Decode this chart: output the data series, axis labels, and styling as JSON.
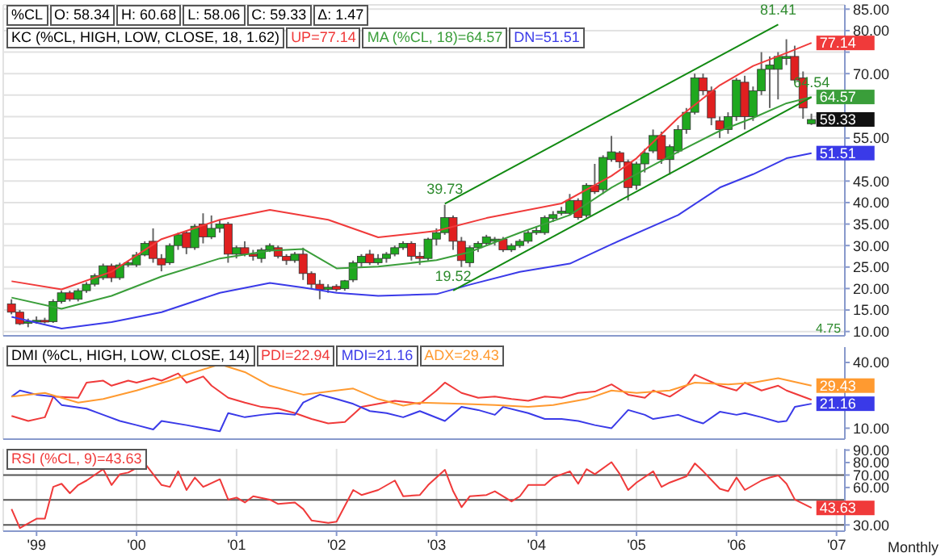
{
  "chart_data": [
    {
      "type": "candlestick",
      "title": "%CL",
      "annotations": [
        "O: 58.34",
        "H: 60.68",
        "L: 58.06",
        "C: 59.33",
        "Δ: 1.47",
        {
          "text": "39.73",
          "x": "2003-02",
          "y": 39.73
        },
        {
          "text": "81.41",
          "x": "2006-06",
          "y": 81.41
        },
        {
          "text": "19.52",
          "x": "2003-03",
          "y": 19.52
        },
        {
          "text": "64.54",
          "x": "2006-10",
          "y": 64.54
        }
      ],
      "subtitle": "4.75",
      "legend_title": "KC (%CL, HIGH, LOW, CLOSE, 18, 1.62)",
      "legend": "top left",
      "grid": true,
      "tick_labels": "y",
      "xticks": [
        {
          "value": "1999-01",
          "label": null
        },
        {
          "value": "2000-01",
          "label": null
        },
        {
          "value": "2001-01",
          "label": null
        },
        {
          "value": "2002-01",
          "label": null
        },
        {
          "value": "2003-01",
          "label": null
        },
        {
          "value": "2004-01",
          "label": null
        },
        {
          "value": "2005-01",
          "label": null
        },
        {
          "value": "2006-01",
          "label": null
        },
        {
          "value": "2007-01",
          "label": null
        }
      ],
      "x": [
        "1998-10",
        "1998-11",
        "1998-12",
        "1999-01",
        "1999-02",
        "1999-03",
        "1999-04",
        "1999-05",
        "1999-06",
        "1999-07",
        "1999-08",
        "1999-09",
        "1999-10",
        "1999-11",
        "1999-12",
        "2000-01",
        "2000-02",
        "2000-03",
        "2000-04",
        "2000-05",
        "2000-06",
        "2000-07",
        "2000-08",
        "2000-09",
        "2000-10",
        "2000-11",
        "2000-12",
        "2001-01",
        "2001-02",
        "2001-03",
        "2001-04",
        "2001-05",
        "2001-06",
        "2001-07",
        "2001-08",
        "2001-09",
        "2001-10",
        "2001-11",
        "2001-12",
        "2002-01",
        "2002-02",
        "2002-03",
        "2002-04",
        "2002-05",
        "2002-06",
        "2002-07",
        "2002-08",
        "2002-09",
        "2002-10",
        "2002-11",
        "2002-12",
        "2003-01",
        "2003-02",
        "2003-03",
        "2003-04",
        "2003-05",
        "2003-06",
        "2003-07",
        "2003-08",
        "2003-09",
        "2003-10",
        "2003-11",
        "2003-12",
        "2004-01",
        "2004-02",
        "2004-03",
        "2004-04",
        "2004-05",
        "2004-06",
        "2004-07",
        "2004-08",
        "2004-09",
        "2004-10",
        "2004-11",
        "2004-12",
        "2005-01",
        "2005-02",
        "2005-03",
        "2005-04",
        "2005-05",
        "2005-06",
        "2005-07",
        "2005-08",
        "2005-09",
        "2005-10",
        "2005-11",
        "2005-12",
        "2006-01",
        "2006-02",
        "2006-03",
        "2006-04",
        "2006-05",
        "2006-06",
        "2006-07",
        "2006-08",
        "2006-09",
        "2006-10"
      ],
      "ohlc": [
        [
          16.4,
          17.5,
          14,
          14.5
        ],
        [
          14.5,
          15,
          11.5,
          11.8
        ],
        [
          12,
          13,
          11,
          12.3
        ],
        [
          12.3,
          13.5,
          11.8,
          12.6
        ],
        [
          12.6,
          13.2,
          11.9,
          12.2
        ],
        [
          12.3,
          17.5,
          12,
          17
        ],
        [
          17,
          19.5,
          16.5,
          19
        ],
        [
          19,
          19.5,
          17,
          17.5
        ],
        [
          17.5,
          20,
          17,
          19.5
        ],
        [
          19.5,
          21.5,
          19,
          21
        ],
        [
          21,
          23.5,
          20.5,
          23
        ],
        [
          22.5,
          25.8,
          22,
          25.3
        ],
        [
          25.3,
          25.8,
          21.5,
          22.5
        ],
        [
          22.5,
          26,
          22,
          25.5
        ],
        [
          25.5,
          26.5,
          25,
          26
        ],
        [
          25.5,
          28.5,
          25,
          27.8
        ],
        [
          27.8,
          31,
          27.5,
          30.5
        ],
        [
          31,
          34,
          26,
          27
        ],
        [
          27,
          28,
          24,
          25.5
        ],
        [
          26,
          30.5,
          25.5,
          30
        ],
        [
          30,
          33,
          29,
          32.5
        ],
        [
          33,
          33.5,
          28,
          29.5
        ],
        [
          29.5,
          35,
          29,
          34.5
        ],
        [
          35,
          37.5,
          30.5,
          32
        ],
        [
          32,
          37,
          31.5,
          34
        ],
        [
          34,
          36,
          33,
          35
        ],
        [
          35,
          35.5,
          26,
          28
        ],
        [
          28,
          30,
          27,
          29.5
        ],
        [
          29.5,
          31,
          27.5,
          28
        ],
        [
          28,
          29,
          26.5,
          27.5
        ],
        [
          27,
          29.5,
          26,
          29
        ],
        [
          29,
          30.5,
          28.5,
          30
        ],
        [
          29.5,
          30,
          27,
          27.5
        ],
        [
          27.5,
          28,
          25.5,
          26.5
        ],
        [
          26.5,
          28.5,
          26,
          28
        ],
        [
          28,
          29.5,
          22,
          23.5
        ],
        [
          23.5,
          24,
          20,
          21
        ],
        [
          21,
          22,
          17.5,
          19.8
        ],
        [
          19.8,
          21,
          19,
          20.3
        ],
        [
          20.5,
          21,
          19.3,
          19.8
        ],
        [
          20,
          22,
          19.5,
          21.8
        ],
        [
          22,
          26.5,
          21.5,
          26
        ],
        [
          26,
          28,
          25,
          27.5
        ],
        [
          28,
          29,
          25.5,
          26
        ],
        [
          26,
          28,
          25.5,
          27
        ],
        [
          27,
          28.5,
          26,
          28
        ],
        [
          28,
          30,
          27.5,
          29.5
        ],
        [
          29.5,
          31,
          29,
          30.5
        ],
        [
          30.5,
          31,
          26.5,
          27.5
        ],
        [
          27.5,
          28.5,
          25.5,
          27
        ],
        [
          27,
          31.8,
          26.5,
          31.5
        ],
        [
          31.5,
          34,
          30,
          33
        ],
        [
          33,
          39.5,
          32.5,
          36.5
        ],
        [
          36.5,
          37,
          29,
          31
        ],
        [
          31,
          32,
          25,
          26.5
        ],
        [
          26,
          30,
          25,
          29.5
        ],
        [
          29.5,
          31,
          28.5,
          30.5
        ],
        [
          30.5,
          32.5,
          30,
          32
        ],
        [
          31,
          32,
          30,
          31.5
        ],
        [
          31.5,
          32,
          28.5,
          29
        ],
        [
          29,
          30.5,
          28.5,
          30
        ],
        [
          30,
          31.5,
          29.5,
          31
        ],
        [
          31,
          33.5,
          30.5,
          33
        ],
        [
          33,
          34.5,
          32.5,
          33.5
        ],
        [
          33,
          37,
          32.5,
          36.5
        ],
        [
          36.3,
          38,
          35.5,
          37.2
        ],
        [
          37.5,
          39,
          37,
          38
        ],
        [
          37.5,
          42,
          37,
          40.5
        ],
        [
          40.5,
          41,
          36,
          36.5
        ],
        [
          37,
          44.5,
          36.5,
          44
        ],
        [
          44,
          49,
          42,
          42.5
        ],
        [
          43,
          51,
          42,
          50.5
        ],
        [
          50,
          55.5,
          49.5,
          51.8
        ],
        [
          51.6,
          52,
          48,
          49.5
        ],
        [
          49.5,
          50,
          40.5,
          43.5
        ],
        [
          44,
          49.5,
          43,
          49
        ],
        [
          49,
          52.5,
          47,
          51.5
        ],
        [
          52,
          57,
          51.5,
          55.6
        ],
        [
          55.6,
          56.5,
          49,
          50
        ],
        [
          50,
          53.5,
          46.5,
          53
        ],
        [
          52,
          58,
          51.5,
          57
        ],
        [
          57,
          62,
          56,
          61
        ],
        [
          61,
          70,
          60.5,
          69
        ],
        [
          69,
          70,
          65,
          66
        ],
        [
          66,
          67,
          58,
          59.7
        ],
        [
          59,
          60,
          55,
          57
        ],
        [
          57,
          61,
          56,
          60
        ],
        [
          60,
          69,
          59,
          68.5
        ],
        [
          68,
          69.5,
          57,
          60
        ],
        [
          60,
          67,
          59,
          66
        ],
        [
          66,
          75,
          65,
          71
        ],
        [
          71,
          74,
          62,
          72
        ],
        [
          71,
          75,
          64,
          74
        ],
        [
          73.5,
          78,
          72,
          74
        ],
        [
          74,
          76.5,
          68,
          68.5
        ],
        [
          69,
          70.5,
          59.5,
          62
        ],
        [
          58.34,
          60.68,
          58.06,
          59.33
        ]
      ],
      "value_labels": [
        null,
        null,
        null,
        null,
        null,
        null,
        null,
        null,
        null,
        null,
        null,
        null,
        null,
        null,
        null,
        null,
        null,
        null,
        null,
        null,
        null,
        null,
        null,
        null,
        null,
        null,
        null,
        null,
        null,
        null,
        null,
        null,
        null,
        null,
        null,
        null,
        null,
        null,
        null,
        null,
        null,
        null,
        null,
        null,
        null,
        null,
        null,
        null,
        null,
        null,
        null,
        null,
        null,
        null,
        null,
        null,
        null,
        null,
        null,
        null,
        null,
        null,
        null,
        null,
        null,
        null,
        null,
        null,
        null,
        null,
        null,
        null,
        null,
        null,
        null,
        null,
        null,
        null,
        null,
        null,
        null,
        null,
        null,
        null,
        null,
        null,
        null,
        null,
        null,
        null,
        null,
        null,
        null,
        null,
        null,
        null,
        "59.33"
      ],
      "series": [
        {
          "name": "UP=77.14",
          "type": "line",
          "color": "#f03a3a",
          "x": [
            "1998-10",
            "1999-04",
            "1999-10",
            "2000-04",
            "2000-11",
            "2001-05",
            "2001-12",
            "2002-06",
            "2003-01",
            "2003-07",
            "2004-04",
            "2004-10",
            "2005-01",
            "2005-06",
            "2005-11",
            "2006-03",
            "2006-07",
            "2006-10"
          ],
          "values": [
            21.7,
            19.8,
            23.9,
            31.5,
            36,
            38.3,
            36,
            31.9,
            33.4,
            36.4,
            39.8,
            46.2,
            50.3,
            59.7,
            67.3,
            71.8,
            74.8,
            77.14
          ],
          "value_labels": [
            null,
            null,
            null,
            null,
            null,
            null,
            null,
            null,
            null,
            null,
            null,
            null,
            null,
            null,
            null,
            null,
            null,
            "77.14"
          ]
        },
        {
          "name": "MA (%CL, 18)=64.57",
          "type": "line",
          "color": "#3a9e3a",
          "x": [
            "1998-10",
            "1999-04",
            "1999-10",
            "2000-04",
            "2000-11",
            "2001-05",
            "2001-09",
            "2002-01",
            "2002-06",
            "2003-01",
            "2003-05",
            "2003-11",
            "2004-05",
            "2004-10",
            "2005-06",
            "2005-11",
            "2006-03",
            "2006-07",
            "2006-10"
          ],
          "values": [
            17.9,
            15.3,
            18.3,
            22.8,
            27,
            28.8,
            29.2,
            24.7,
            25.1,
            26.6,
            28.5,
            33,
            37.1,
            43.5,
            51.8,
            56.7,
            59.7,
            63.1,
            64.57
          ],
          "value_labels": [
            null,
            null,
            null,
            null,
            null,
            null,
            null,
            null,
            null,
            null,
            null,
            null,
            null,
            null,
            null,
            null,
            null,
            null,
            "64.57"
          ]
        },
        {
          "name": "DN=51.51",
          "type": "line",
          "color": "#3a3ae8",
          "x": [
            "1998-10",
            "1999-04",
            "1999-10",
            "2000-04",
            "2000-11",
            "2001-05",
            "2001-09",
            "2002-01",
            "2002-06",
            "2003-01",
            "2003-05",
            "2003-11",
            "2004-05",
            "2004-10",
            "2005-06",
            "2005-11",
            "2006-03",
            "2006-07",
            "2006-10"
          ],
          "values": [
            13.4,
            10.7,
            12.2,
            14.5,
            19,
            21.3,
            20.2,
            19,
            18.3,
            18.7,
            20.9,
            23.9,
            25.8,
            30.3,
            37.1,
            43.5,
            46.6,
            50.3,
            51.51
          ],
          "value_labels": [
            null,
            null,
            null,
            null,
            null,
            null,
            null,
            null,
            null,
            null,
            null,
            null,
            null,
            null,
            null,
            null,
            null,
            null,
            "51.51"
          ]
        },
        {
          "type": "line",
          "color": "#128a12",
          "x": [
            "2003-02",
            "2006-06"
          ],
          "values": [
            39.73,
            81.41
          ]
        },
        {
          "type": "line",
          "color": "#128a12",
          "x": [
            "2003-03",
            "2006-10"
          ],
          "values": [
            19.52,
            64.54
          ]
        }
      ],
      "xlim": [
        "1998-09",
        "2007-02"
      ],
      "ylim": [
        9,
        86
      ],
      "yticks": [
        {
          "value": 10,
          "label": "10.00"
        },
        {
          "value": 15,
          "label": "15.00"
        },
        {
          "value": 20,
          "label": "20.00"
        },
        {
          "value": 25,
          "label": "25.00"
        },
        {
          "value": 30,
          "label": "30.00"
        },
        {
          "value": 35,
          "label": "35.00"
        },
        {
          "value": 40,
          "label": "40.00"
        },
        {
          "value": 45,
          "label": "45.00"
        },
        {
          "value": 50,
          "label": null
        },
        {
          "value": 55,
          "label": "55.00"
        },
        {
          "value": 60,
          "label": null
        },
        {
          "value": 65,
          "label": null
        },
        {
          "value": 70,
          "label": "70.00"
        },
        {
          "value": 75,
          "label": null
        },
        {
          "value": 80,
          "label": "80.00"
        },
        {
          "value": 85,
          "label": "85.00"
        }
      ]
    },
    {
      "type": "line",
      "legend_title": "DMI (%CL, HIGH, LOW, CLOSE, 14)",
      "legend": "top left",
      "grid": "x",
      "tick_labels": "y",
      "series": [
        {
          "name": "PDI=22.94",
          "color": "#f03a3a",
          "x": [
            "1998-10",
            "1998-12",
            "1999-02",
            "1999-03",
            "1999-06",
            "1999-07",
            "1999-09",
            "1999-10",
            "1999-12",
            "2000-01",
            "2000-03",
            "2000-04",
            "2000-06",
            "2000-07",
            "2000-09",
            "2000-10",
            "2000-12",
            "2001-02",
            "2001-04",
            "2001-06",
            "2001-08",
            "2001-10",
            "2001-12",
            "2002-02",
            "2002-04",
            "2002-06",
            "2002-08",
            "2002-10",
            "2002-11",
            "2003-01",
            "2003-02",
            "2003-04",
            "2003-06",
            "2003-08",
            "2003-10",
            "2003-12",
            "2004-02",
            "2004-04",
            "2004-06",
            "2004-08",
            "2004-10",
            "2004-12",
            "2005-02",
            "2005-03",
            "2005-05",
            "2005-07",
            "2005-08",
            "2005-11",
            "2006-01",
            "2006-02",
            "2006-04",
            "2006-06",
            "2006-07",
            "2006-10"
          ],
          "values": [
            15.6,
            13.3,
            15,
            24.4,
            23.9,
            30.8,
            31.7,
            29.4,
            31.7,
            30.8,
            32.8,
            31.7,
            35,
            30.8,
            33.6,
            29.4,
            23.9,
            21.7,
            19.7,
            18.9,
            16.9,
            14.2,
            12.2,
            12.8,
            19.7,
            21.1,
            22.5,
            21.7,
            21.1,
            27.2,
            30.8,
            26.1,
            23.9,
            24.4,
            23.3,
            22.5,
            24.4,
            23.9,
            26.1,
            26.7,
            30,
            25.3,
            23.9,
            27.2,
            24.4,
            29.4,
            34.4,
            29.4,
            27.2,
            30.8,
            27.2,
            29.4,
            27.2,
            22.94
          ]
        },
        {
          "name": "MDI=21.16",
          "color": "#3a3ae8",
          "x": [
            "1998-10",
            "1998-11",
            "1999-01",
            "1999-03",
            "1999-04",
            "1999-07",
            "1999-09",
            "1999-11",
            "2000-01",
            "2000-03",
            "2000-04",
            "2000-07",
            "2000-09",
            "2000-11",
            "2000-12",
            "2001-02",
            "2001-04",
            "2001-06",
            "2001-08",
            "2001-09",
            "2001-11",
            "2002-01",
            "2002-03",
            "2002-05",
            "2002-07",
            "2002-09",
            "2002-11",
            "2003-02",
            "2003-04",
            "2003-06",
            "2003-08",
            "2003-09",
            "2003-12",
            "2004-02",
            "2004-04",
            "2004-06",
            "2004-08",
            "2004-10",
            "2004-12",
            "2005-02",
            "2005-03",
            "2005-06",
            "2005-08",
            "2005-09",
            "2005-11",
            "2006-01",
            "2006-02",
            "2006-04",
            "2006-06",
            "2006-07",
            "2006-08",
            "2006-10"
          ],
          "values": [
            24.4,
            27.2,
            25.3,
            24.4,
            20.6,
            18.9,
            16.1,
            13.3,
            11.4,
            9.4,
            13.3,
            11.4,
            10,
            8.6,
            16.9,
            15,
            16.1,
            16.9,
            16.1,
            21.7,
            25.3,
            23.3,
            21.1,
            17.8,
            16.9,
            15,
            17.8,
            13.3,
            19.7,
            18.3,
            16.1,
            19.7,
            16.9,
            14.2,
            14.2,
            13.3,
            11.4,
            10,
            18.3,
            16.1,
            14.2,
            16.1,
            13.3,
            12.2,
            17.5,
            16.1,
            16.9,
            15,
            12.8,
            13.3,
            19.7,
            21.16
          ],
          "value_labels": [
            null,
            null,
            null,
            null,
            null,
            null,
            null,
            null,
            null,
            null,
            null,
            null,
            null,
            null,
            null,
            null,
            null,
            null,
            null,
            null,
            null,
            null,
            null,
            null,
            null,
            null,
            null,
            null,
            null,
            null,
            null,
            null,
            null,
            null,
            null,
            null,
            null,
            null,
            null,
            null,
            null,
            null,
            null,
            null,
            null,
            null,
            null,
            null,
            null,
            null,
            null,
            "21.16"
          ]
        },
        {
          "name": "ADX=29.43",
          "color": "#ff9a30",
          "x": [
            "1998-10",
            "1999-02",
            "1999-04",
            "1999-06",
            "1999-09",
            "2000-01",
            "2000-05",
            "2000-07",
            "2000-11",
            "2001-02",
            "2001-05",
            "2001-09",
            "2002-01",
            "2002-03",
            "2002-06",
            "2002-09",
            "2002-11",
            "2003-04",
            "2003-08",
            "2003-12",
            "2004-03",
            "2004-07",
            "2004-10",
            "2005-01",
            "2005-05",
            "2005-08",
            "2005-12",
            "2006-03",
            "2006-06",
            "2006-10"
          ],
          "values": [
            24.4,
            26.1,
            23.9,
            21.7,
            23.3,
            27.2,
            31.7,
            34.4,
            39.2,
            35.6,
            29.4,
            25.3,
            27.2,
            28.1,
            23.3,
            20.3,
            21.7,
            21.1,
            20.6,
            19.7,
            20.6,
            23.3,
            27.2,
            26.1,
            27.2,
            30.8,
            30,
            30.8,
            32.8,
            29.43
          ],
          "value_labels": [
            null,
            null,
            null,
            null,
            null,
            null,
            null,
            null,
            null,
            null,
            null,
            null,
            null,
            null,
            null,
            null,
            null,
            null,
            null,
            null,
            null,
            null,
            null,
            null,
            null,
            null,
            null,
            null,
            null,
            "29.43"
          ]
        }
      ],
      "xlim": [
        "1998-09",
        "2007-02"
      ],
      "xticks": [
        {
          "value": "1999-01",
          "label": null
        },
        {
          "value": "2000-01",
          "label": null
        },
        {
          "value": "2001-01",
          "label": null
        },
        {
          "value": "2002-01",
          "label": null
        },
        {
          "value": "2003-01",
          "label": null
        },
        {
          "value": "2004-01",
          "label": null
        },
        {
          "value": "2005-01",
          "label": null
        },
        {
          "value": "2006-01",
          "label": null
        },
        {
          "value": "2007-01",
          "label": null
        }
      ],
      "ylim": [
        5,
        47
      ],
      "yticks": [
        {
          "value": 10,
          "label": "10.00"
        },
        {
          "value": 40,
          "label": "40.00"
        }
      ]
    },
    {
      "type": "line",
      "legend": "top left",
      "grid": "x",
      "xlabel": "Monthly",
      "series": [
        {
          "name": "RSI (%CL, 9)=43.63",
          "color": "#f03a3a",
          "x": [
            "1998-10",
            "1998-11",
            "1999-01",
            "1999-02",
            "1999-03",
            "1999-04",
            "1999-05",
            "1999-06",
            "1999-07",
            "1999-09",
            "1999-10",
            "1999-11",
            "1999-12",
            "2000-02",
            "2000-04",
            "2000-05",
            "2000-06",
            "2000-07",
            "2000-08",
            "2000-09",
            "2000-11",
            "2000-12",
            "2001-01",
            "2001-02",
            "2001-03",
            "2001-05",
            "2001-06",
            "2001-08",
            "2001-09",
            "2001-10",
            "2001-12",
            "2002-01",
            "2002-03",
            "2002-04",
            "2002-06",
            "2002-08",
            "2002-09",
            "2002-11",
            "2002-12",
            "2003-02",
            "2003-03",
            "2003-04",
            "2003-05",
            "2003-07",
            "2003-08",
            "2003-10",
            "2003-11",
            "2003-12",
            "2004-02",
            "2004-03",
            "2004-05",
            "2004-06",
            "2004-07",
            "2004-08",
            "2004-10",
            "2004-11",
            "2004-12",
            "2005-01",
            "2005-03",
            "2005-04",
            "2005-05",
            "2005-07",
            "2005-08",
            "2005-09",
            "2005-11",
            "2005-12",
            "2006-01",
            "2006-02",
            "2006-04",
            "2006-05",
            "2006-06",
            "2006-07",
            "2006-08",
            "2006-10"
          ],
          "values": [
            42.7,
            27.5,
            35,
            35,
            60.5,
            63,
            55.4,
            62,
            65.6,
            74.7,
            62,
            70.7,
            72,
            79.3,
            62,
            60.5,
            73,
            58,
            68,
            60.5,
            66.6,
            50.3,
            51.9,
            48,
            53,
            50.3,
            46.8,
            48,
            42.7,
            33.6,
            31.6,
            32.6,
            58,
            54,
            58,
            65.6,
            53,
            54,
            62,
            74.2,
            57,
            44.2,
            53,
            54,
            57,
            48.8,
            53,
            62,
            62,
            68,
            73,
            63,
            74.7,
            70.7,
            80.3,
            70.7,
            58,
            64,
            73,
            60.5,
            64,
            69,
            79.3,
            73,
            59,
            57,
            68,
            58,
            65.6,
            68,
            69.7,
            63,
            50.3,
            43.63
          ],
          "value_labels": [
            null,
            null,
            null,
            null,
            null,
            null,
            null,
            null,
            null,
            null,
            null,
            null,
            null,
            null,
            null,
            null,
            null,
            null,
            null,
            null,
            null,
            null,
            null,
            null,
            null,
            null,
            null,
            null,
            null,
            null,
            null,
            null,
            null,
            null,
            null,
            null,
            null,
            null,
            null,
            null,
            null,
            null,
            null,
            null,
            null,
            null,
            null,
            null,
            null,
            null,
            null,
            null,
            null,
            null,
            null,
            null,
            null,
            null,
            null,
            null,
            null,
            null,
            null,
            null,
            null,
            null,
            null,
            null,
            null,
            null,
            null,
            null,
            null,
            "43.63"
          ]
        }
      ],
      "ref_lines": [
        {
          "axis": "y",
          "value": 30,
          "color": "#555555"
        },
        {
          "axis": "y",
          "value": 50,
          "color": "#555555"
        },
        {
          "axis": "y",
          "value": 70,
          "color": "#555555"
        }
      ],
      "xlim": [
        "1998-09",
        "2007-02"
      ],
      "xticks": [
        {
          "value": "1999-01",
          "label": "'99"
        },
        {
          "value": "2000-01",
          "label": "'00"
        },
        {
          "value": "2001-01",
          "label": "'01"
        },
        {
          "value": "2002-01",
          "label": "'02"
        },
        {
          "value": "2003-01",
          "label": "'03"
        },
        {
          "value": "2004-01",
          "label": "'04"
        },
        {
          "value": "2005-01",
          "label": "'05"
        },
        {
          "value": "2006-01",
          "label": "'06"
        },
        {
          "value": "2007-01",
          "label": "'07"
        }
      ],
      "ylim": [
        25,
        91
      ],
      "yticks": [
        {
          "value": 30,
          "label": "30.00"
        },
        {
          "value": 60,
          "label": "60.00"
        },
        {
          "value": 70,
          "label": "70.00"
        },
        {
          "value": 80,
          "label": "80.00"
        },
        {
          "value": 90,
          "label": "90.00"
        }
      ]
    }
  ]
}
